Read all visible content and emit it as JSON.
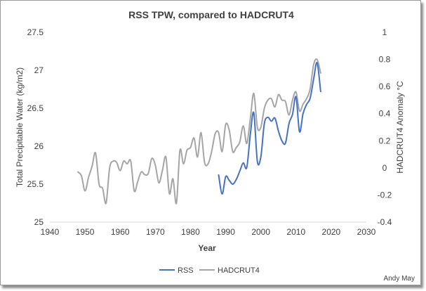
{
  "chart_data": {
    "type": "line",
    "title": "RSS TPW, compared to HADCRUT4",
    "xlabel": "Year",
    "ylabel_left": "Total Precipitable Water (kg/m2)",
    "ylabel_right": "HADCRUT4 Anomaly °C",
    "xlim": [
      1940,
      2030
    ],
    "ylim_left": [
      25,
      27.5
    ],
    "ylim_right": [
      -0.4,
      1
    ],
    "x_ticks": [
      "1940",
      "1950",
      "1960",
      "1970",
      "1980",
      "1990",
      "2000",
      "2010",
      "2020",
      "2030"
    ],
    "y_left_ticks": [
      "25",
      "25.5",
      "26",
      "26.5",
      "27",
      "27.5"
    ],
    "y_right_ticks": [
      "-0.4",
      "-0.2",
      "0",
      "0.2",
      "0.4",
      "0.6",
      "0.8",
      "1"
    ],
    "grid": false,
    "legend_position": "bottom",
    "series": [
      {
        "name": "RSS",
        "axis": "left",
        "color": "#4472c4",
        "x": [
          1988,
          1989,
          1990,
          1991,
          1992,
          1993,
          1994,
          1995,
          1996,
          1997,
          1998,
          1999,
          2000,
          2001,
          2002,
          2003,
          2004,
          2005,
          2006,
          2007,
          2008,
          2009,
          2010,
          2011,
          2012,
          2013,
          2014,
          2015,
          2016,
          2017
        ],
        "values": [
          25.62,
          25.37,
          25.6,
          25.55,
          25.5,
          25.56,
          25.67,
          25.78,
          25.72,
          26.15,
          26.44,
          25.8,
          25.86,
          26.3,
          26.38,
          26.33,
          26.37,
          26.2,
          26.07,
          26.04,
          26.3,
          26.42,
          26.65,
          26.19,
          26.43,
          26.55,
          26.63,
          26.88,
          27.1,
          26.72
        ]
      },
      {
        "name": "HADCRUT4",
        "axis": "right",
        "color": "#a5a5a5",
        "x": [
          1948,
          1949,
          1950,
          1951,
          1952,
          1953,
          1954,
          1955,
          1956,
          1957,
          1958,
          1959,
          1960,
          1961,
          1962,
          1963,
          1964,
          1965,
          1966,
          1967,
          1968,
          1969,
          1970,
          1971,
          1972,
          1973,
          1974,
          1975,
          1976,
          1977,
          1978,
          1979,
          1980,
          1981,
          1982,
          1983,
          1984,
          1985,
          1986,
          1987,
          1988,
          1989,
          1990,
          1991,
          1992,
          1993,
          1994,
          1995,
          1996,
          1997,
          1998,
          1999,
          2000,
          2001,
          2002,
          2003,
          2004,
          2005,
          2006,
          2007,
          2008,
          2009,
          2010,
          2011,
          2012,
          2013,
          2014,
          2015,
          2016,
          2017
        ],
        "values": [
          -0.03,
          -0.06,
          -0.17,
          -0.07,
          0.01,
          0.11,
          -0.12,
          -0.15,
          -0.26,
          0.0,
          0.05,
          0.04,
          -0.02,
          0.05,
          0.03,
          0.05,
          -0.17,
          -0.1,
          -0.03,
          -0.05,
          -0.04,
          0.07,
          0.02,
          -0.11,
          -0.02,
          0.08,
          -0.19,
          -0.08,
          -0.26,
          0.13,
          0.03,
          0.13,
          0.15,
          0.22,
          0.08,
          0.26,
          0.04,
          0.03,
          0.12,
          0.25,
          0.26,
          0.12,
          0.32,
          0.28,
          0.12,
          0.15,
          0.19,
          0.31,
          0.18,
          0.36,
          0.55,
          0.3,
          0.3,
          0.44,
          0.5,
          0.51,
          0.45,
          0.54,
          0.5,
          0.49,
          0.39,
          0.5,
          0.56,
          0.42,
          0.47,
          0.51,
          0.58,
          0.76,
          0.8,
          0.7
        ]
      }
    ]
  },
  "credit": "Andy May"
}
